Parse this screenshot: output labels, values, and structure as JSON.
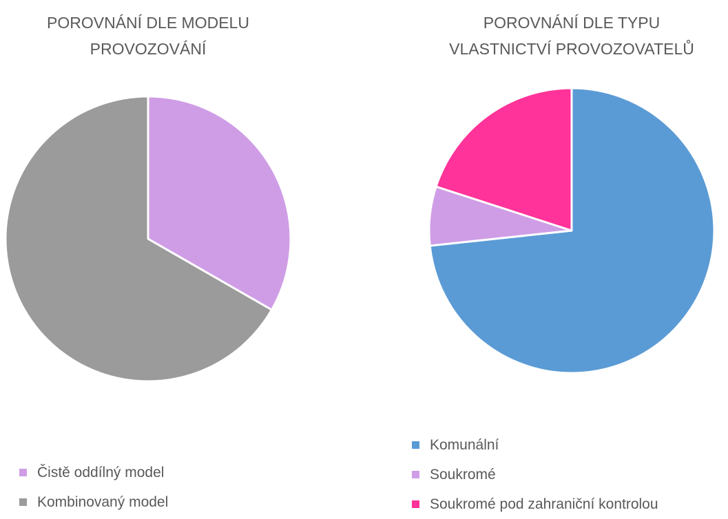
{
  "chart_data": [
    {
      "type": "pie",
      "title": "POROVNÁNÍ DLE MODELU PROVOZOVÁNÍ",
      "categories": [
        "Čistě oddílný model",
        "Kombinovaný model"
      ],
      "values": [
        33.3,
        66.7
      ],
      "colors": [
        "#cf9de6",
        "#9b9b9b"
      ]
    },
    {
      "type": "pie",
      "title": "POROVNÁNÍ DLE TYPU VLASTNICTVÍ PROVOZOVATELŮ",
      "categories": [
        "Komunální",
        "Soukromé",
        "Soukromé pod zahraniční kontrolou"
      ],
      "values": [
        73.3,
        6.7,
        20
      ],
      "colors": [
        "#5b9bd5",
        "#cf9de6",
        "#ff3399"
      ]
    }
  ]
}
